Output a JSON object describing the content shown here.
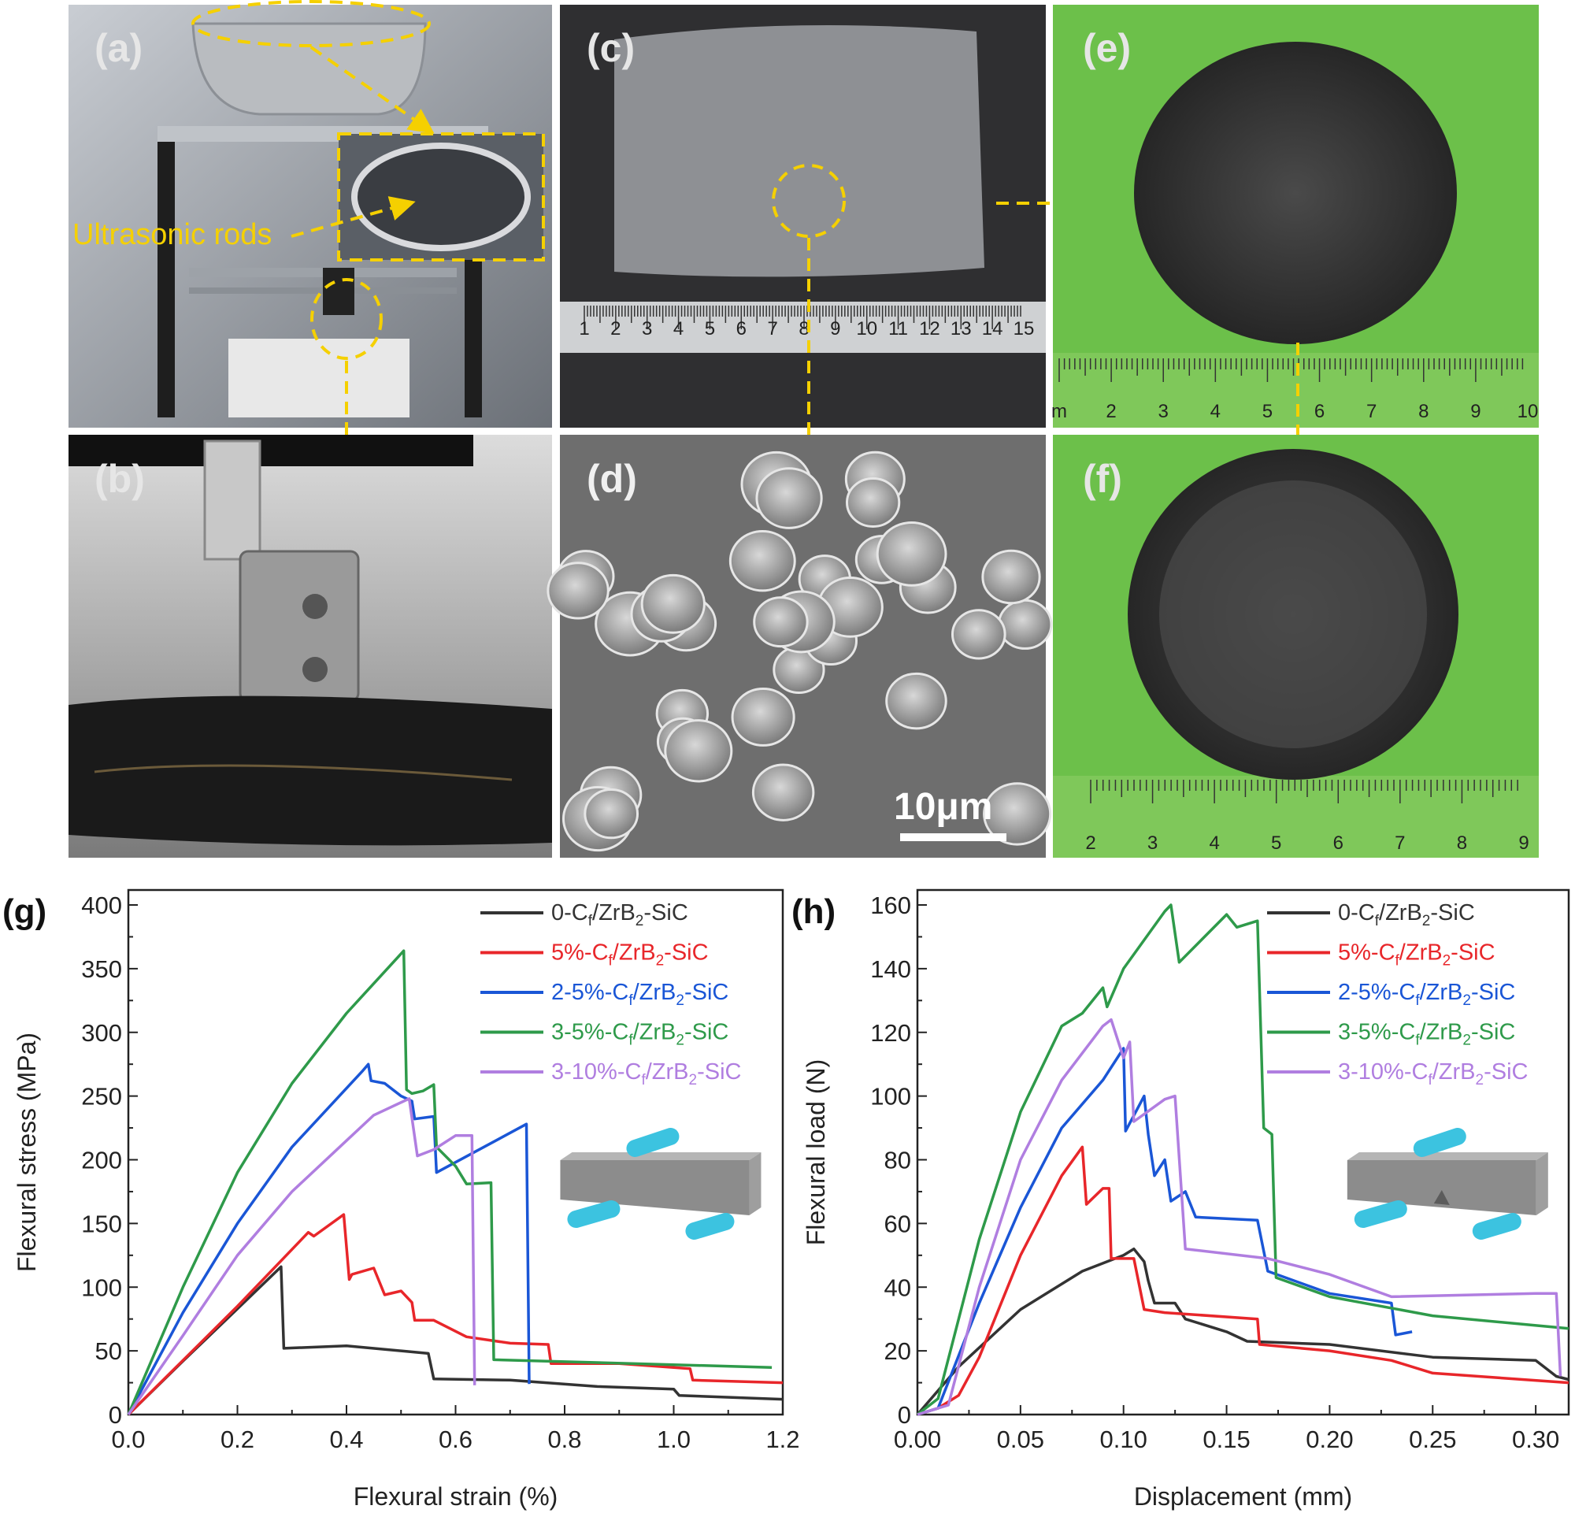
{
  "panels": {
    "a": {
      "label": "(a)",
      "annotation": "Ultrasonic rods"
    },
    "b": {
      "label": "(b)"
    },
    "c": {
      "label": "(c)",
      "ruler_numbers": [
        "1",
        "2",
        "3",
        "4",
        "5",
        "6",
        "7",
        "8",
        "9",
        "10",
        "11",
        "12",
        "13",
        "14",
        "15"
      ]
    },
    "d": {
      "label": "(d)",
      "scale_bar": "10μm"
    },
    "e": {
      "label": "(e)",
      "ruler_numbers": [
        "m",
        "2",
        "3",
        "4",
        "5",
        "6",
        "7",
        "8",
        "9",
        "10"
      ]
    },
    "f": {
      "label": "(f)",
      "ruler_numbers": [
        "2",
        "3",
        "4",
        "5",
        "6",
        "7",
        "8",
        "9"
      ]
    }
  },
  "colors": {
    "annotation": "#f5d000",
    "photo_green": "#6cc04a"
  },
  "chart_data": [
    {
      "panel_label": "(g)",
      "type": "line",
      "xlabel": "Flexural strain (%)",
      "ylabel": "Flexural stress (MPa)",
      "xlim": [
        0,
        1.2
      ],
      "ylim": [
        0,
        400
      ],
      "xticks": [
        "0.0",
        "0.2",
        "0.4",
        "0.6",
        "0.8",
        "1.0",
        "1.2"
      ],
      "yticks": [
        "0",
        "50",
        "100",
        "150",
        "200",
        "250",
        "300",
        "350",
        "400"
      ],
      "legend": "top-right",
      "inset": "three-point bending schematic",
      "series": [
        {
          "name": "0-Cf/ZrB2-SiC",
          "color": "#333333",
          "points": [
            [
              0,
              0
            ],
            [
              0.1,
              42
            ],
            [
              0.2,
              83
            ],
            [
              0.28,
              116
            ],
            [
              0.285,
              52
            ],
            [
              0.4,
              54
            ],
            [
              0.5,
              50
            ],
            [
              0.55,
              48
            ],
            [
              0.56,
              28
            ],
            [
              0.7,
              27
            ],
            [
              0.86,
              22
            ],
            [
              1.0,
              20
            ],
            [
              1.01,
              15
            ],
            [
              1.2,
              12
            ]
          ]
        },
        {
          "name": "5%-Cf/ZrB2-SiC",
          "color": "#e8262a",
          "points": [
            [
              0,
              0
            ],
            [
              0.2,
              85
            ],
            [
              0.33,
              143
            ],
            [
              0.34,
              140
            ],
            [
              0.395,
              157
            ],
            [
              0.405,
              106
            ],
            [
              0.41,
              110
            ],
            [
              0.45,
              115
            ],
            [
              0.47,
              94
            ],
            [
              0.5,
              97
            ],
            [
              0.52,
              88
            ],
            [
              0.525,
              74
            ],
            [
              0.56,
              74
            ],
            [
              0.62,
              61
            ],
            [
              0.7,
              56
            ],
            [
              0.77,
              55
            ],
            [
              0.775,
              40
            ],
            [
              0.9,
              40
            ],
            [
              1.03,
              36
            ],
            [
              1.035,
              27
            ],
            [
              1.2,
              25
            ]
          ]
        },
        {
          "name": "2-5%-Cf/ZrB2-SiC",
          "color": "#1a56d6",
          "points": [
            [
              0,
              0
            ],
            [
              0.1,
              80
            ],
            [
              0.2,
              150
            ],
            [
              0.3,
              210
            ],
            [
              0.43,
              270
            ],
            [
              0.44,
              275
            ],
            [
              0.445,
              262
            ],
            [
              0.47,
              260
            ],
            [
              0.5,
              250
            ],
            [
              0.52,
              246
            ],
            [
              0.525,
              232
            ],
            [
              0.56,
              234
            ],
            [
              0.565,
              190
            ],
            [
              0.73,
              228
            ],
            [
              0.735,
              24
            ]
          ]
        },
        {
          "name": "3-5%-Cf/ZrB2-SiC",
          "color": "#2e9a4a",
          "points": [
            [
              0,
              0
            ],
            [
              0.1,
              100
            ],
            [
              0.2,
              190
            ],
            [
              0.3,
              260
            ],
            [
              0.4,
              315
            ],
            [
              0.505,
              364
            ],
            [
              0.51,
              255
            ],
            [
              0.52,
              252
            ],
            [
              0.54,
              254
            ],
            [
              0.56,
              259
            ],
            [
              0.565,
              210
            ],
            [
              0.6,
              195
            ],
            [
              0.62,
              181
            ],
            [
              0.665,
              182
            ],
            [
              0.67,
              43
            ],
            [
              1.18,
              37
            ]
          ]
        },
        {
          "name": "3-10%-Cf/ZrB2-SiC",
          "color": "#b07ee0",
          "points": [
            [
              0,
              0
            ],
            [
              0.1,
              62
            ],
            [
              0.2,
              125
            ],
            [
              0.3,
              175
            ],
            [
              0.4,
              215
            ],
            [
              0.45,
              235
            ],
            [
              0.515,
              248
            ],
            [
              0.53,
              203
            ],
            [
              0.56,
              208
            ],
            [
              0.6,
              219
            ],
            [
              0.63,
              219
            ],
            [
              0.635,
              23
            ]
          ]
        }
      ]
    },
    {
      "panel_label": "(h)",
      "type": "line",
      "xlabel": "Displacement (mm)",
      "ylabel": "Flexural load (N)",
      "xlim": [
        0,
        0.316
      ],
      "ylim": [
        0,
        160
      ],
      "xticks": [
        "0.00",
        "0.05",
        "0.10",
        "0.15",
        "0.20",
        "0.25",
        "0.30"
      ],
      "yticks": [
        "0",
        "20",
        "40",
        "60",
        "80",
        "100",
        "120",
        "140",
        "160"
      ],
      "legend": "top-right",
      "inset": "notched-beam three-point bending schematic",
      "series": [
        {
          "name": "0-Cf/ZrB2-SiC",
          "color": "#333333",
          "points": [
            [
              0,
              0
            ],
            [
              0.02,
              15
            ],
            [
              0.05,
              33
            ],
            [
              0.08,
              45
            ],
            [
              0.1,
              50
            ],
            [
              0.105,
              52
            ],
            [
              0.11,
              48
            ],
            [
              0.112,
              42
            ],
            [
              0.115,
              35
            ],
            [
              0.125,
              35
            ],
            [
              0.13,
              30
            ],
            [
              0.15,
              26
            ],
            [
              0.16,
              23
            ],
            [
              0.2,
              22
            ],
            [
              0.25,
              18
            ],
            [
              0.3,
              17
            ],
            [
              0.31,
              12
            ],
            [
              0.316,
              11
            ]
          ]
        },
        {
          "name": "5%-Cf/ZrB2-SiC",
          "color": "#e8262a",
          "points": [
            [
              0,
              0
            ],
            [
              0.01,
              2
            ],
            [
              0.02,
              6
            ],
            [
              0.03,
              18
            ],
            [
              0.05,
              50
            ],
            [
              0.07,
              75
            ],
            [
              0.08,
              84
            ],
            [
              0.082,
              66
            ],
            [
              0.09,
              71
            ],
            [
              0.093,
              71
            ],
            [
              0.094,
              49
            ],
            [
              0.105,
              49
            ],
            [
              0.11,
              33
            ],
            [
              0.12,
              32
            ],
            [
              0.165,
              30
            ],
            [
              0.166,
              22
            ],
            [
              0.2,
              20
            ],
            [
              0.23,
              17
            ],
            [
              0.25,
              13
            ],
            [
              0.316,
              10
            ]
          ]
        },
        {
          "name": "2-5%-Cf/ZrB2-SiC",
          "color": "#1a56d6",
          "points": [
            [
              0,
              0
            ],
            [
              0.01,
              2
            ],
            [
              0.03,
              35
            ],
            [
              0.05,
              65
            ],
            [
              0.07,
              90
            ],
            [
              0.09,
              105
            ],
            [
              0.1,
              115
            ],
            [
              0.101,
              89
            ],
            [
              0.11,
              100
            ],
            [
              0.112,
              88
            ],
            [
              0.115,
              75
            ],
            [
              0.12,
              80
            ],
            [
              0.123,
              67
            ],
            [
              0.13,
              70
            ],
            [
              0.135,
              62
            ],
            [
              0.165,
              61
            ],
            [
              0.17,
              45
            ],
            [
              0.2,
              38
            ],
            [
              0.23,
              35
            ],
            [
              0.232,
              25
            ],
            [
              0.24,
              26
            ]
          ]
        },
        {
          "name": "3-5%-Cf/ZrB2-SiC",
          "color": "#2e9a4a",
          "points": [
            [
              0,
              0
            ],
            [
              0.01,
              5
            ],
            [
              0.03,
              55
            ],
            [
              0.05,
              95
            ],
            [
              0.07,
              122
            ],
            [
              0.08,
              126
            ],
            [
              0.09,
              134
            ],
            [
              0.092,
              128
            ],
            [
              0.1,
              140
            ],
            [
              0.12,
              158
            ],
            [
              0.123,
              160
            ],
            [
              0.127,
              142
            ],
            [
              0.15,
              157
            ],
            [
              0.155,
              153
            ],
            [
              0.165,
              155
            ],
            [
              0.168,
              90
            ],
            [
              0.172,
              88
            ],
            [
              0.174,
              43
            ],
            [
              0.2,
              37
            ],
            [
              0.25,
              31
            ],
            [
              0.316,
              27
            ]
          ]
        },
        {
          "name": "3-10%-Cf/ZrB2-SiC",
          "color": "#b07ee0",
          "points": [
            [
              0,
              0
            ],
            [
              0.015,
              3
            ],
            [
              0.03,
              40
            ],
            [
              0.05,
              80
            ],
            [
              0.07,
              105
            ],
            [
              0.09,
              122
            ],
            [
              0.094,
              124
            ],
            [
              0.1,
              112
            ],
            [
              0.103,
              117
            ],
            [
              0.105,
              92
            ],
            [
              0.12,
              99
            ],
            [
              0.125,
              100
            ],
            [
              0.13,
              52
            ],
            [
              0.17,
              49
            ],
            [
              0.2,
              44
            ],
            [
              0.23,
              37
            ],
            [
              0.3,
              38
            ],
            [
              0.31,
              38
            ],
            [
              0.312,
              12
            ]
          ]
        }
      ]
    }
  ]
}
